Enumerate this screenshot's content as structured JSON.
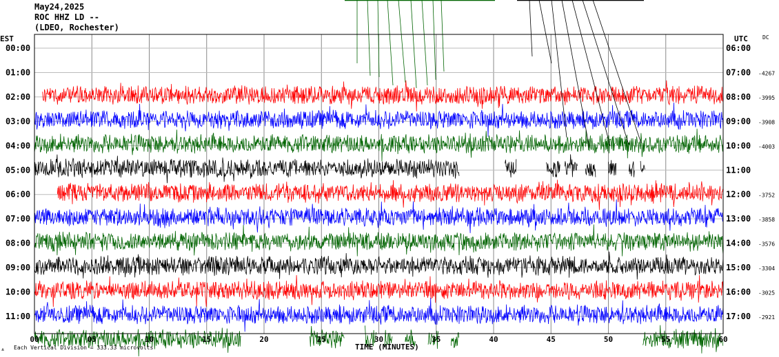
{
  "header": {
    "date": "May24,2025",
    "station": "ROC HHZ LD --",
    "network": "(LDEO, Rochester)"
  },
  "chart_data": {
    "type": "line",
    "title": "",
    "xlabel": "TIME (MINUTES)",
    "left_axis_label": "EST",
    "right_axis_label": "UTC",
    "dc_label": "DC",
    "xlim": [
      0,
      60
    ],
    "x_ticks": [
      "00",
      "05",
      "10",
      "15",
      "20",
      "25",
      "30",
      "35",
      "40",
      "45",
      "50",
      "55",
      "60"
    ],
    "footer_note": "Each Vertical Division =  333.33 microvolts",
    "grid": true,
    "series": [
      {
        "est": "00:00",
        "utc": "06:00",
        "dc": "",
        "color": "#ff0000",
        "segments": []
      },
      {
        "est": "01:00",
        "utc": "07:00",
        "dc": "-4267",
        "color": "#ff0000",
        "segments": [
          [
            0.7,
            60
          ]
        ]
      },
      {
        "est": "02:00",
        "utc": "08:00",
        "dc": "-3995",
        "color": "#0000ff",
        "segments": [
          [
            0,
            60
          ]
        ]
      },
      {
        "est": "03:00",
        "utc": "09:00",
        "dc": "-3908",
        "color": "#006400",
        "segments": [
          [
            0,
            60
          ]
        ]
      },
      {
        "est": "04:00",
        "utc": "10:00",
        "dc": "-4003",
        "color": "#000000",
        "segments": [
          [
            0,
            37
          ],
          [
            41,
            42
          ],
          [
            44.6,
            45.8
          ],
          [
            46.2,
            47.3
          ],
          [
            48,
            48.9
          ],
          [
            50,
            50.7
          ],
          [
            51.8,
            52.3
          ],
          [
            52.8,
            53.2
          ]
        ]
      },
      {
        "est": "05:00",
        "utc": "11:00",
        "dc": "",
        "color": "#ff0000",
        "segments": [
          [
            2,
            60
          ]
        ]
      },
      {
        "est": "06:00",
        "utc": "12:00",
        "dc": "-3752",
        "color": "#0000ff",
        "segments": [
          [
            0,
            60
          ]
        ]
      },
      {
        "est": "07:00",
        "utc": "13:00",
        "dc": "-3858",
        "color": "#006400",
        "segments": [
          [
            0,
            60
          ]
        ]
      },
      {
        "est": "08:00",
        "utc": "14:00",
        "dc": "-3576",
        "color": "#000000",
        "segments": [
          [
            0,
            60
          ]
        ]
      },
      {
        "est": "09:00",
        "utc": "15:00",
        "dc": "-3304",
        "color": "#ff0000",
        "segments": [
          [
            0,
            60
          ]
        ]
      },
      {
        "est": "10:00",
        "utc": "16:00",
        "dc": "-3025",
        "color": "#0000ff",
        "segments": [
          [
            0,
            60
          ]
        ]
      },
      {
        "est": "11:00",
        "utc": "17:00",
        "dc": "-2921",
        "color": "#006400",
        "segments": [
          [
            0,
            18
          ],
          [
            24,
            27
          ],
          [
            28.8,
            29.8
          ],
          [
            30.5,
            31.2
          ],
          [
            32.3,
            33.2
          ],
          [
            34.3,
            35.2
          ],
          [
            36.3,
            37
          ],
          [
            53,
            60
          ]
        ]
      }
    ]
  }
}
